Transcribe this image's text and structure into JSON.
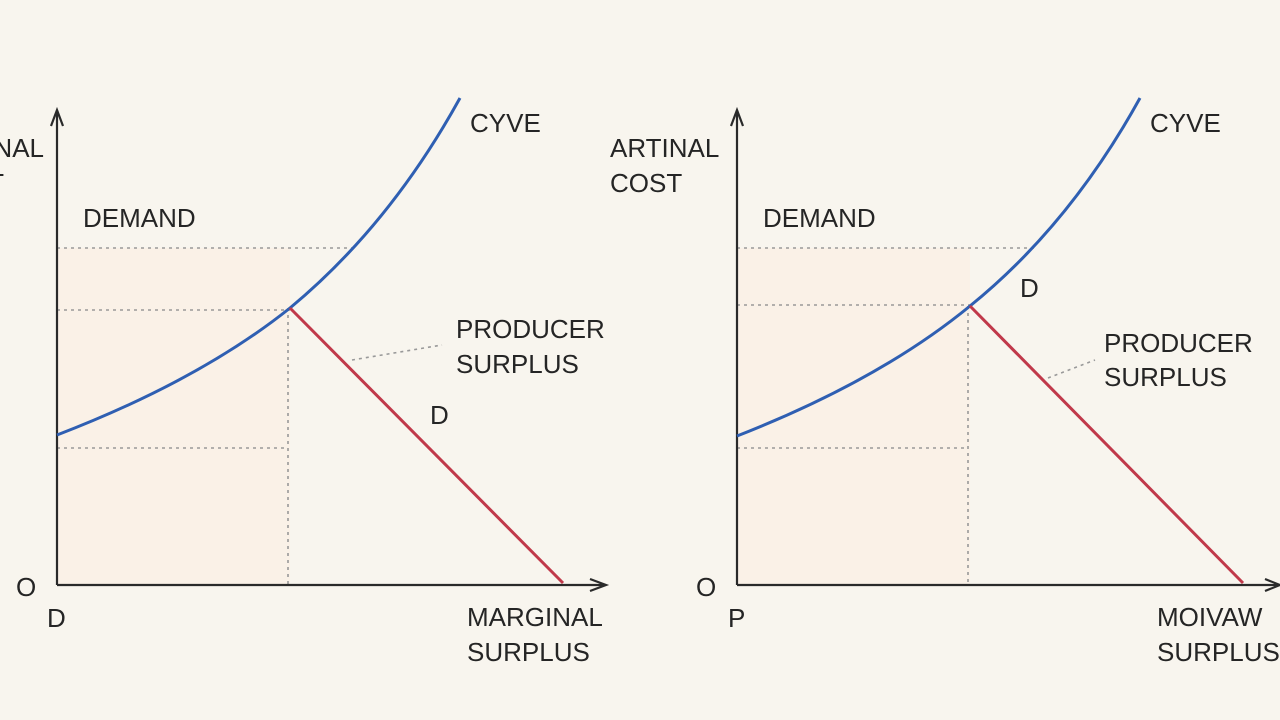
{
  "panels": [
    {
      "y_axis_label": [
        "NAL",
        "T"
      ],
      "curve_label": "CYVE",
      "demand_label": "DEMAND",
      "surplus_label": [
        "PRODUCER",
        "SURPLUS"
      ],
      "line_label": "D",
      "origin_label": "O",
      "axis_corner_label": "D",
      "x_axis_label": [
        "MARGINAL",
        "SURPLUS"
      ]
    },
    {
      "y_axis_label": [
        "ARTINAL",
        "COST"
      ],
      "curve_label": "CYVE",
      "demand_label": "DEMAND",
      "surplus_label": [
        "PRODUCER",
        "SURPLUS"
      ],
      "line_label": "D",
      "origin_label": "O",
      "axis_corner_label": "P",
      "x_axis_label": [
        "MOIVAW",
        "SURPLUS"
      ]
    }
  ]
}
